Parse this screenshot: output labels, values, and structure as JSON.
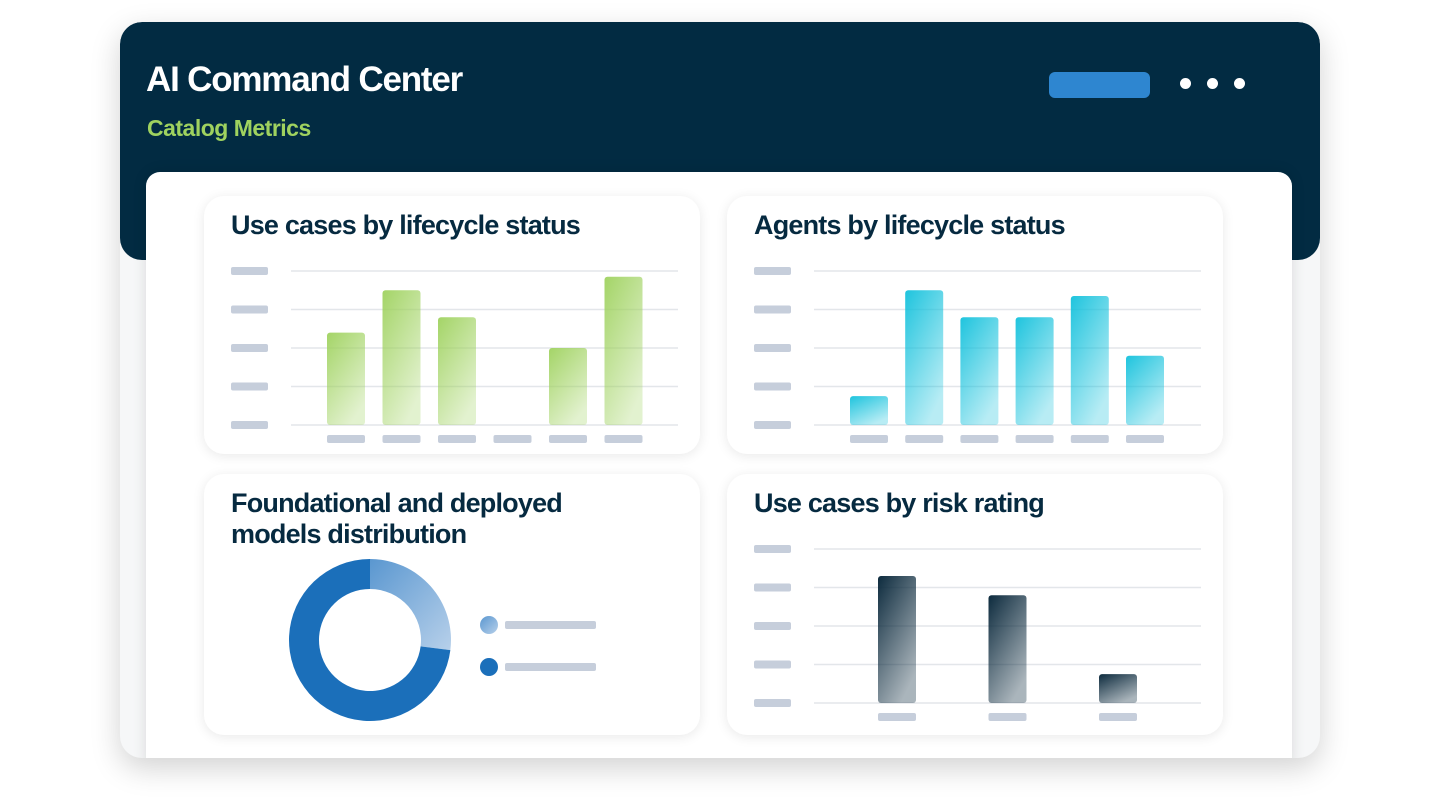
{
  "header": {
    "title": "AI Command Center",
    "subtitle": "Catalog Metrics",
    "accent": "#9fd25f",
    "background": "#022b42",
    "button_color": "#2e86d0",
    "menu_icon": "more-horizontal-icon"
  },
  "chart_data": [
    {
      "type": "bar",
      "title": "Use cases by lifecycle status",
      "categories": [
        "",
        "",
        "",
        "",
        "",
        ""
      ],
      "values": [
        2.4,
        3.5,
        2.8,
        0,
        2.0,
        3.85
      ],
      "ylim": [
        0,
        4
      ],
      "grid": true,
      "color": "#9fd25f"
    },
    {
      "type": "bar",
      "title": "Agents by lifecycle status",
      "categories": [
        "",
        "",
        "",
        "",
        "",
        ""
      ],
      "values": [
        0.75,
        3.5,
        2.8,
        2.8,
        3.35,
        1.8
      ],
      "ylim": [
        0,
        4
      ],
      "grid": true,
      "color": "#13c1dc"
    },
    {
      "type": "pie",
      "title": "Foundational and deployed models distribution",
      "values": [
        27,
        73
      ],
      "colors": [
        "#7fb0dc",
        "#1b6fba"
      ],
      "donut": true,
      "legend": "right"
    },
    {
      "type": "bar",
      "title": "Use cases by risk rating",
      "categories": [
        "",
        "",
        ""
      ],
      "values": [
        3.3,
        2.8,
        0.75
      ],
      "ylim": [
        0,
        4
      ],
      "grid": true,
      "color": "#0d2b3e"
    }
  ]
}
